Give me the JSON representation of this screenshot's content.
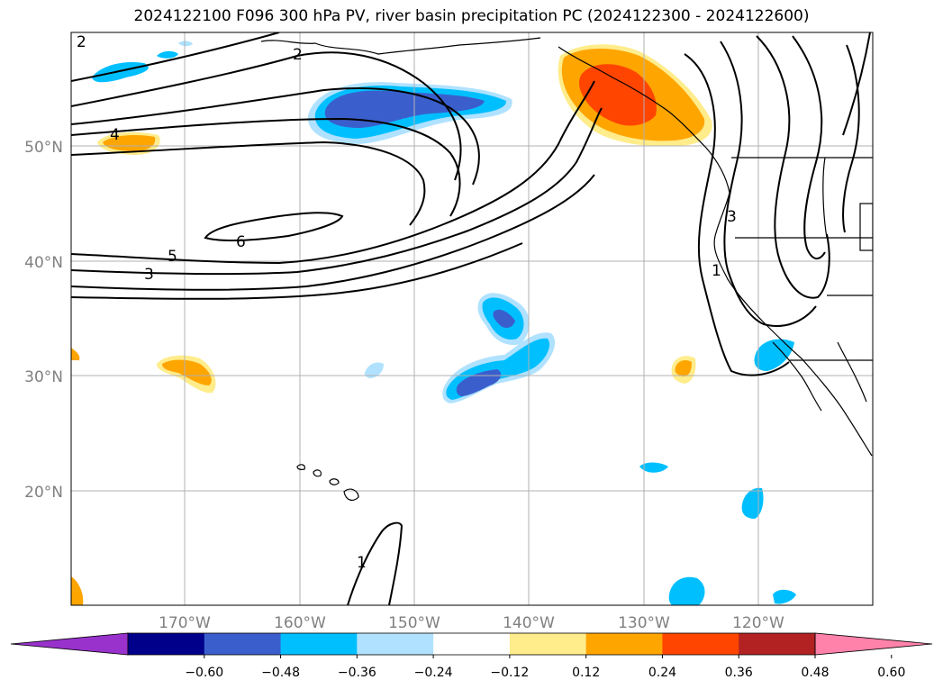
{
  "title": "2024122100 F096 300 hPa PV, river basin precipitation PC (2024122300 - 2024122600)",
  "latitude_labels": [
    "50°N",
    "40°N",
    "30°N",
    "20°N"
  ],
  "longitude_labels": [
    "170°W",
    "160°W",
    "150°W",
    "140°W",
    "130°W",
    "120°W"
  ],
  "contour_labels": [
    "2",
    "2",
    "4",
    "5",
    "6",
    "3",
    "3",
    "1",
    "1"
  ],
  "colorbar": {
    "ticks": [
      "−0.60",
      "−0.48",
      "−0.36",
      "−0.24",
      "−0.12",
      "0.12",
      "0.24",
      "0.36",
      "0.48",
      "0.60"
    ],
    "colors": [
      "#9932cc",
      "#00008b",
      "#3a5fcd",
      "#00bfff",
      "#b0e2ff",
      "#ffffff",
      "#ffec8b",
      "#ffa500",
      "#ff4500",
      "#b22222",
      "#ff82ab"
    ]
  },
  "colors": {
    "neg_strong": "#3a5fcd",
    "neg_mid": "#00bfff",
    "neg_weak": "#b0e2ff",
    "pos_weak": "#ffec8b",
    "pos_mid": "#ffa500",
    "pos_strong": "#ff4500",
    "gridline": "#b0b0b0"
  }
}
